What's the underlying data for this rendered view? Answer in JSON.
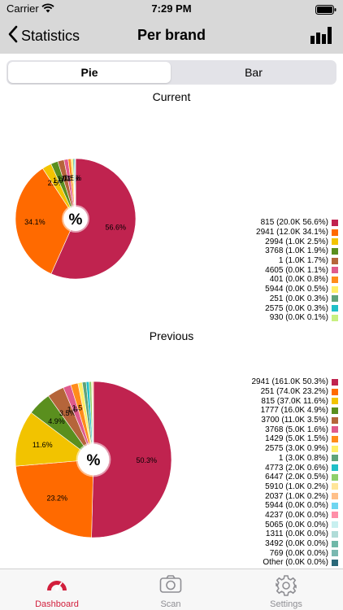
{
  "status_bar": {
    "carrier": "Carrier",
    "time": "7:29 PM"
  },
  "nav": {
    "back_label": "Statistics",
    "title": "Per brand"
  },
  "segments": {
    "pie": "Pie",
    "bar": "Bar"
  },
  "sections": {
    "current": "Current",
    "previous": "Previous"
  },
  "center_label": "%",
  "colors": {
    "accent": "#d21f3c",
    "bar_bg": "#d8d8d8"
  },
  "chart_data": [
    {
      "type": "pie",
      "title": "Current",
      "slices": [
        {
          "label": "815 (20.0K 56.6%)",
          "value": 56.6,
          "text": "56.6%",
          "color": "#c0234f"
        },
        {
          "label": "2941 (12.0K 34.1%)",
          "value": 34.1,
          "text": "34.1%",
          "color": "#ff6a00"
        },
        {
          "label": "2994 (1.0K 2.5%)",
          "value": 2.5,
          "text": "2.5%",
          "color": "#f2c300"
        },
        {
          "label": "3768 (1.0K 1.9%)",
          "value": 1.9,
          "text": "1.9%",
          "color": "#5a8f1e"
        },
        {
          "label": "1 (1.0K 1.7%)",
          "value": 1.7,
          "text": "1.7%",
          "color": "#b5653a"
        },
        {
          "label": "4605 (0.0K 1.1%)",
          "value": 1.1,
          "text": "1.1%",
          "color": "#e05a8c"
        },
        {
          "label": "401 (0.0K 0.8%)",
          "value": 0.8,
          "text": "0.8%",
          "color": "#ff8c1a"
        },
        {
          "label": "5944 (0.0K 0.5%)",
          "value": 0.5,
          "text": "0.5%",
          "color": "#ffee66"
        },
        {
          "label": "251 (0.0K 0.3%)",
          "value": 0.3,
          "text": "",
          "color": "#5fa37a"
        },
        {
          "label": "2575 (0.0K 0.3%)",
          "value": 0.3,
          "text": "",
          "color": "#20c0c8"
        },
        {
          "label": "930 (0.0K 0.1%)",
          "value": 0.1,
          "text": "",
          "color": "#c8f080"
        }
      ]
    },
    {
      "type": "pie",
      "title": "Previous",
      "slices": [
        {
          "label": "2941 (161.0K 50.3%)",
          "value": 50.3,
          "text": "50.3%",
          "color": "#c0234f"
        },
        {
          "label": "251 (74.0K 23.2%)",
          "value": 23.2,
          "text": "23.2%",
          "color": "#ff6a00"
        },
        {
          "label": "815 (37.0K 11.6%)",
          "value": 11.6,
          "text": "11.6%",
          "color": "#f2c300"
        },
        {
          "label": "1777 (16.0K 4.9%)",
          "value": 4.9,
          "text": "4.9%",
          "color": "#5a8f1e"
        },
        {
          "label": "3700 (11.0K 3.5%)",
          "value": 3.5,
          "text": "3.5%",
          "color": "#b5653a"
        },
        {
          "label": "3768 (5.0K 1.6%)",
          "value": 1.6,
          "text": "1.6%",
          "color": "#e05a8c"
        },
        {
          "label": "1429 (5.0K 1.5%)",
          "value": 1.5,
          "text": "1.5%",
          "color": "#ff8c1a"
        },
        {
          "label": "2575 (3.0K 0.9%)",
          "value": 0.9,
          "text": "",
          "color": "#ffee66"
        },
        {
          "label": "1 (3.0K 0.8%)",
          "value": 0.8,
          "text": "",
          "color": "#5fa37a"
        },
        {
          "label": "4773 (2.0K 0.6%)",
          "value": 0.6,
          "text": "",
          "color": "#20c0c8"
        },
        {
          "label": "6447 (2.0K 0.5%)",
          "value": 0.5,
          "text": "",
          "color": "#8fd06a"
        },
        {
          "label": "5910 (1.0K 0.2%)",
          "value": 0.2,
          "text": "",
          "color": "#ffe599"
        },
        {
          "label": "2037 (1.0K 0.2%)",
          "value": 0.2,
          "text": "",
          "color": "#ffc08a"
        },
        {
          "label": "5944 (0.0K 0.0%)",
          "value": 0.0,
          "text": "",
          "color": "#6fd5f0"
        },
        {
          "label": "4237 (0.0K 0.0%)",
          "value": 0.0,
          "text": "",
          "color": "#ff8fa8"
        },
        {
          "label": "5065 (0.0K 0.0%)",
          "value": 0.0,
          "text": "",
          "color": "#c8f0f0"
        },
        {
          "label": "1311 (0.0K 0.0%)",
          "value": 0.0,
          "text": "",
          "color": "#b0dcd8"
        },
        {
          "label": "3492 (0.0K 0.0%)",
          "value": 0.0,
          "text": "",
          "color": "#70b8a8"
        },
        {
          "label": "769 (0.0K 0.0%)",
          "value": 0.0,
          "text": "",
          "color": "#7ab8b0"
        },
        {
          "label": "Other (0.0K 0.0%)",
          "value": 0.0,
          "text": "",
          "color": "#2a6878"
        }
      ]
    }
  ],
  "tabs": [
    {
      "label": "Dashboard",
      "icon": "speedometer-icon",
      "active": true
    },
    {
      "label": "Scan",
      "icon": "camera-icon",
      "active": false
    },
    {
      "label": "Settings",
      "icon": "gear-icon",
      "active": false
    }
  ]
}
